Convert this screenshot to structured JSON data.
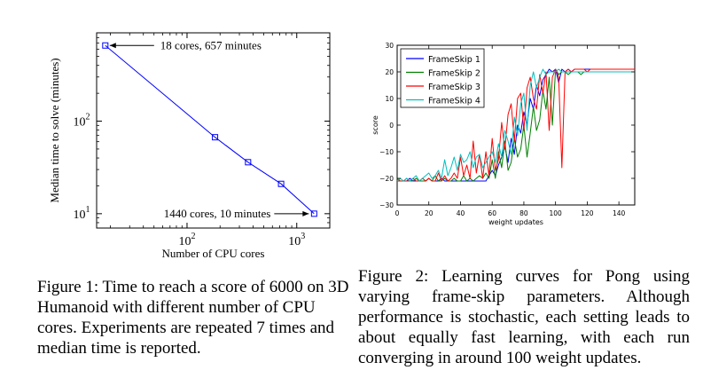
{
  "chart_data": [
    {
      "type": "line",
      "title": "",
      "xlabel": "Number of CPU cores",
      "ylabel": "Median time to solve (minutes)",
      "xscale": "log",
      "yscale": "log",
      "xlim": [
        15,
        2000
      ],
      "ylim": [
        7,
        900
      ],
      "x_ticks": [
        {
          "value": 100,
          "base": "10",
          "exp": "2"
        },
        {
          "value": 1000,
          "base": "10",
          "exp": "3"
        }
      ],
      "y_ticks": [
        {
          "value": 10,
          "base": "10",
          "exp": "1"
        },
        {
          "value": 100,
          "base": "10",
          "exp": "2"
        }
      ],
      "grid": false,
      "series": [
        {
          "color": "#0000ff",
          "marker": "square",
          "x": [
            18,
            180,
            360,
            720,
            1440
          ],
          "y": [
            657,
            67,
            36,
            21,
            10
          ]
        }
      ],
      "annotations": [
        {
          "text": "18 cores, 657 minutes",
          "x": 18,
          "y": 657,
          "arrow": "left"
        },
        {
          "text": "1440 cores, 10 minutes",
          "x": 1440,
          "y": 10,
          "arrow": "right"
        }
      ]
    },
    {
      "type": "line",
      "title": "",
      "xlabel": "weight updates",
      "ylabel": "score",
      "xlim": [
        0,
        150
      ],
      "ylim": [
        -30,
        30
      ],
      "x_ticks": [
        0,
        20,
        40,
        60,
        80,
        100,
        120,
        140
      ],
      "y_ticks": [
        -30,
        -20,
        -10,
        0,
        10,
        20,
        30
      ],
      "grid": false,
      "legend_position": "top-left",
      "x": [
        0,
        2,
        4,
        6,
        8,
        10,
        12,
        14,
        16,
        18,
        20,
        22,
        24,
        26,
        28,
        30,
        32,
        34,
        36,
        38,
        40,
        42,
        44,
        46,
        48,
        50,
        52,
        54,
        56,
        58,
        60,
        62,
        64,
        66,
        68,
        70,
        72,
        74,
        76,
        78,
        80,
        82,
        84,
        86,
        88,
        90,
        92,
        94,
        96,
        98,
        100,
        102,
        104,
        106,
        108,
        110,
        112,
        114,
        116,
        118,
        120,
        122,
        124,
        126,
        128,
        130,
        132,
        134,
        136,
        138,
        140,
        142,
        144,
        146,
        148,
        150
      ],
      "series": [
        {
          "name": "FrameSkip 1",
          "color": "#0000ff",
          "values": [
            -21,
            -21,
            -21,
            -21,
            -20,
            -21,
            -21,
            -21,
            -21,
            -21,
            -20,
            -21,
            -21,
            -21,
            -20,
            -21,
            -21,
            -21,
            -21,
            -21,
            -21,
            -21,
            -21,
            -21,
            -21,
            -21,
            -21,
            -21,
            -21,
            -19,
            -17,
            -19,
            -15,
            -12,
            -8,
            -14,
            -5,
            -11,
            0,
            -3,
            5,
            0,
            10,
            6,
            15,
            11,
            17,
            19,
            21,
            20,
            21,
            16,
            21,
            20,
            21,
            20,
            21,
            21,
            21,
            21,
            21,
            21,
            21,
            21,
            21,
            21,
            21,
            21,
            21,
            21,
            21,
            21,
            21,
            21,
            21,
            21
          ]
        },
        {
          "name": "FrameSkip 2",
          "color": "#008000",
          "values": [
            -20,
            -21,
            -21,
            -20,
            -21,
            -21,
            -20,
            -21,
            -21,
            -21,
            -20,
            -21,
            -19,
            -21,
            -21,
            -20,
            -21,
            -21,
            -20,
            -21,
            -21,
            -19,
            -21,
            -20,
            -21,
            -20,
            -19,
            -20,
            -18,
            -20,
            -13,
            -20,
            -10,
            -16,
            -6,
            -17,
            -14,
            -5,
            -12,
            -9,
            0,
            -12,
            -3,
            7,
            -2,
            2,
            13,
            6,
            18,
            0,
            21,
            19,
            20,
            20,
            19,
            20,
            20,
            20,
            19,
            20,
            20,
            20,
            20,
            20,
            20,
            20,
            20,
            20,
            20,
            20,
            20,
            20,
            20,
            20,
            20,
            20
          ]
        },
        {
          "name": "FrameSkip 3",
          "color": "#ff0000",
          "values": [
            -21,
            -21,
            -21,
            -21,
            -21,
            -20,
            -21,
            -21,
            -20,
            -21,
            -20,
            -21,
            -21,
            -18,
            -21,
            -19,
            -21,
            -20,
            -18,
            -20,
            -12,
            -19,
            -15,
            -20,
            -6,
            -18,
            -11,
            -20,
            -10,
            -19,
            -5,
            -17,
            -13,
            1,
            -9,
            4,
            8,
            -6,
            10,
            12,
            -2,
            14,
            18,
            10,
            6,
            19,
            12,
            20,
            -2,
            18,
            21,
            18,
            -16,
            20,
            21,
            20,
            21,
            21,
            21,
            21,
            20,
            21,
            21,
            21,
            21,
            21,
            21,
            21,
            21,
            21,
            21,
            21,
            21,
            21,
            21,
            21
          ]
        },
        {
          "name": "FrameSkip 4",
          "color": "#00bfbf",
          "values": [
            -21,
            -20,
            -21,
            -20,
            -21,
            -20,
            -19,
            -21,
            -20,
            -19,
            -18,
            -20,
            -19,
            -17,
            -20,
            -13,
            -19,
            -16,
            -12,
            -17,
            -11,
            -14,
            -13,
            -10,
            -16,
            -12,
            -11,
            -16,
            -14,
            -12,
            -10,
            -14,
            -7,
            -12,
            -2,
            -6,
            -11,
            3,
            -4,
            8,
            12,
            -2,
            15,
            20,
            14,
            18,
            21,
            19,
            20,
            20,
            20,
            21,
            20,
            20,
            20,
            20,
            20,
            20,
            20,
            20,
            20,
            20,
            20,
            20,
            20,
            20,
            20,
            20,
            20,
            20,
            20,
            20,
            20,
            20,
            20,
            20
          ]
        }
      ]
    }
  ],
  "captions": {
    "figure1": "Figure 1: Time to reach a score of 6000 on 3D Humanoid with different number of CPU cores. Experiments are repeated 7 times and median time is reported.",
    "figure2": "Figure 2: Learning curves for Pong using varying frame-skip parameters. Although performance is stochastic, each setting leads to about equally fast learning, with each run converging in around 100 weight updates."
  }
}
